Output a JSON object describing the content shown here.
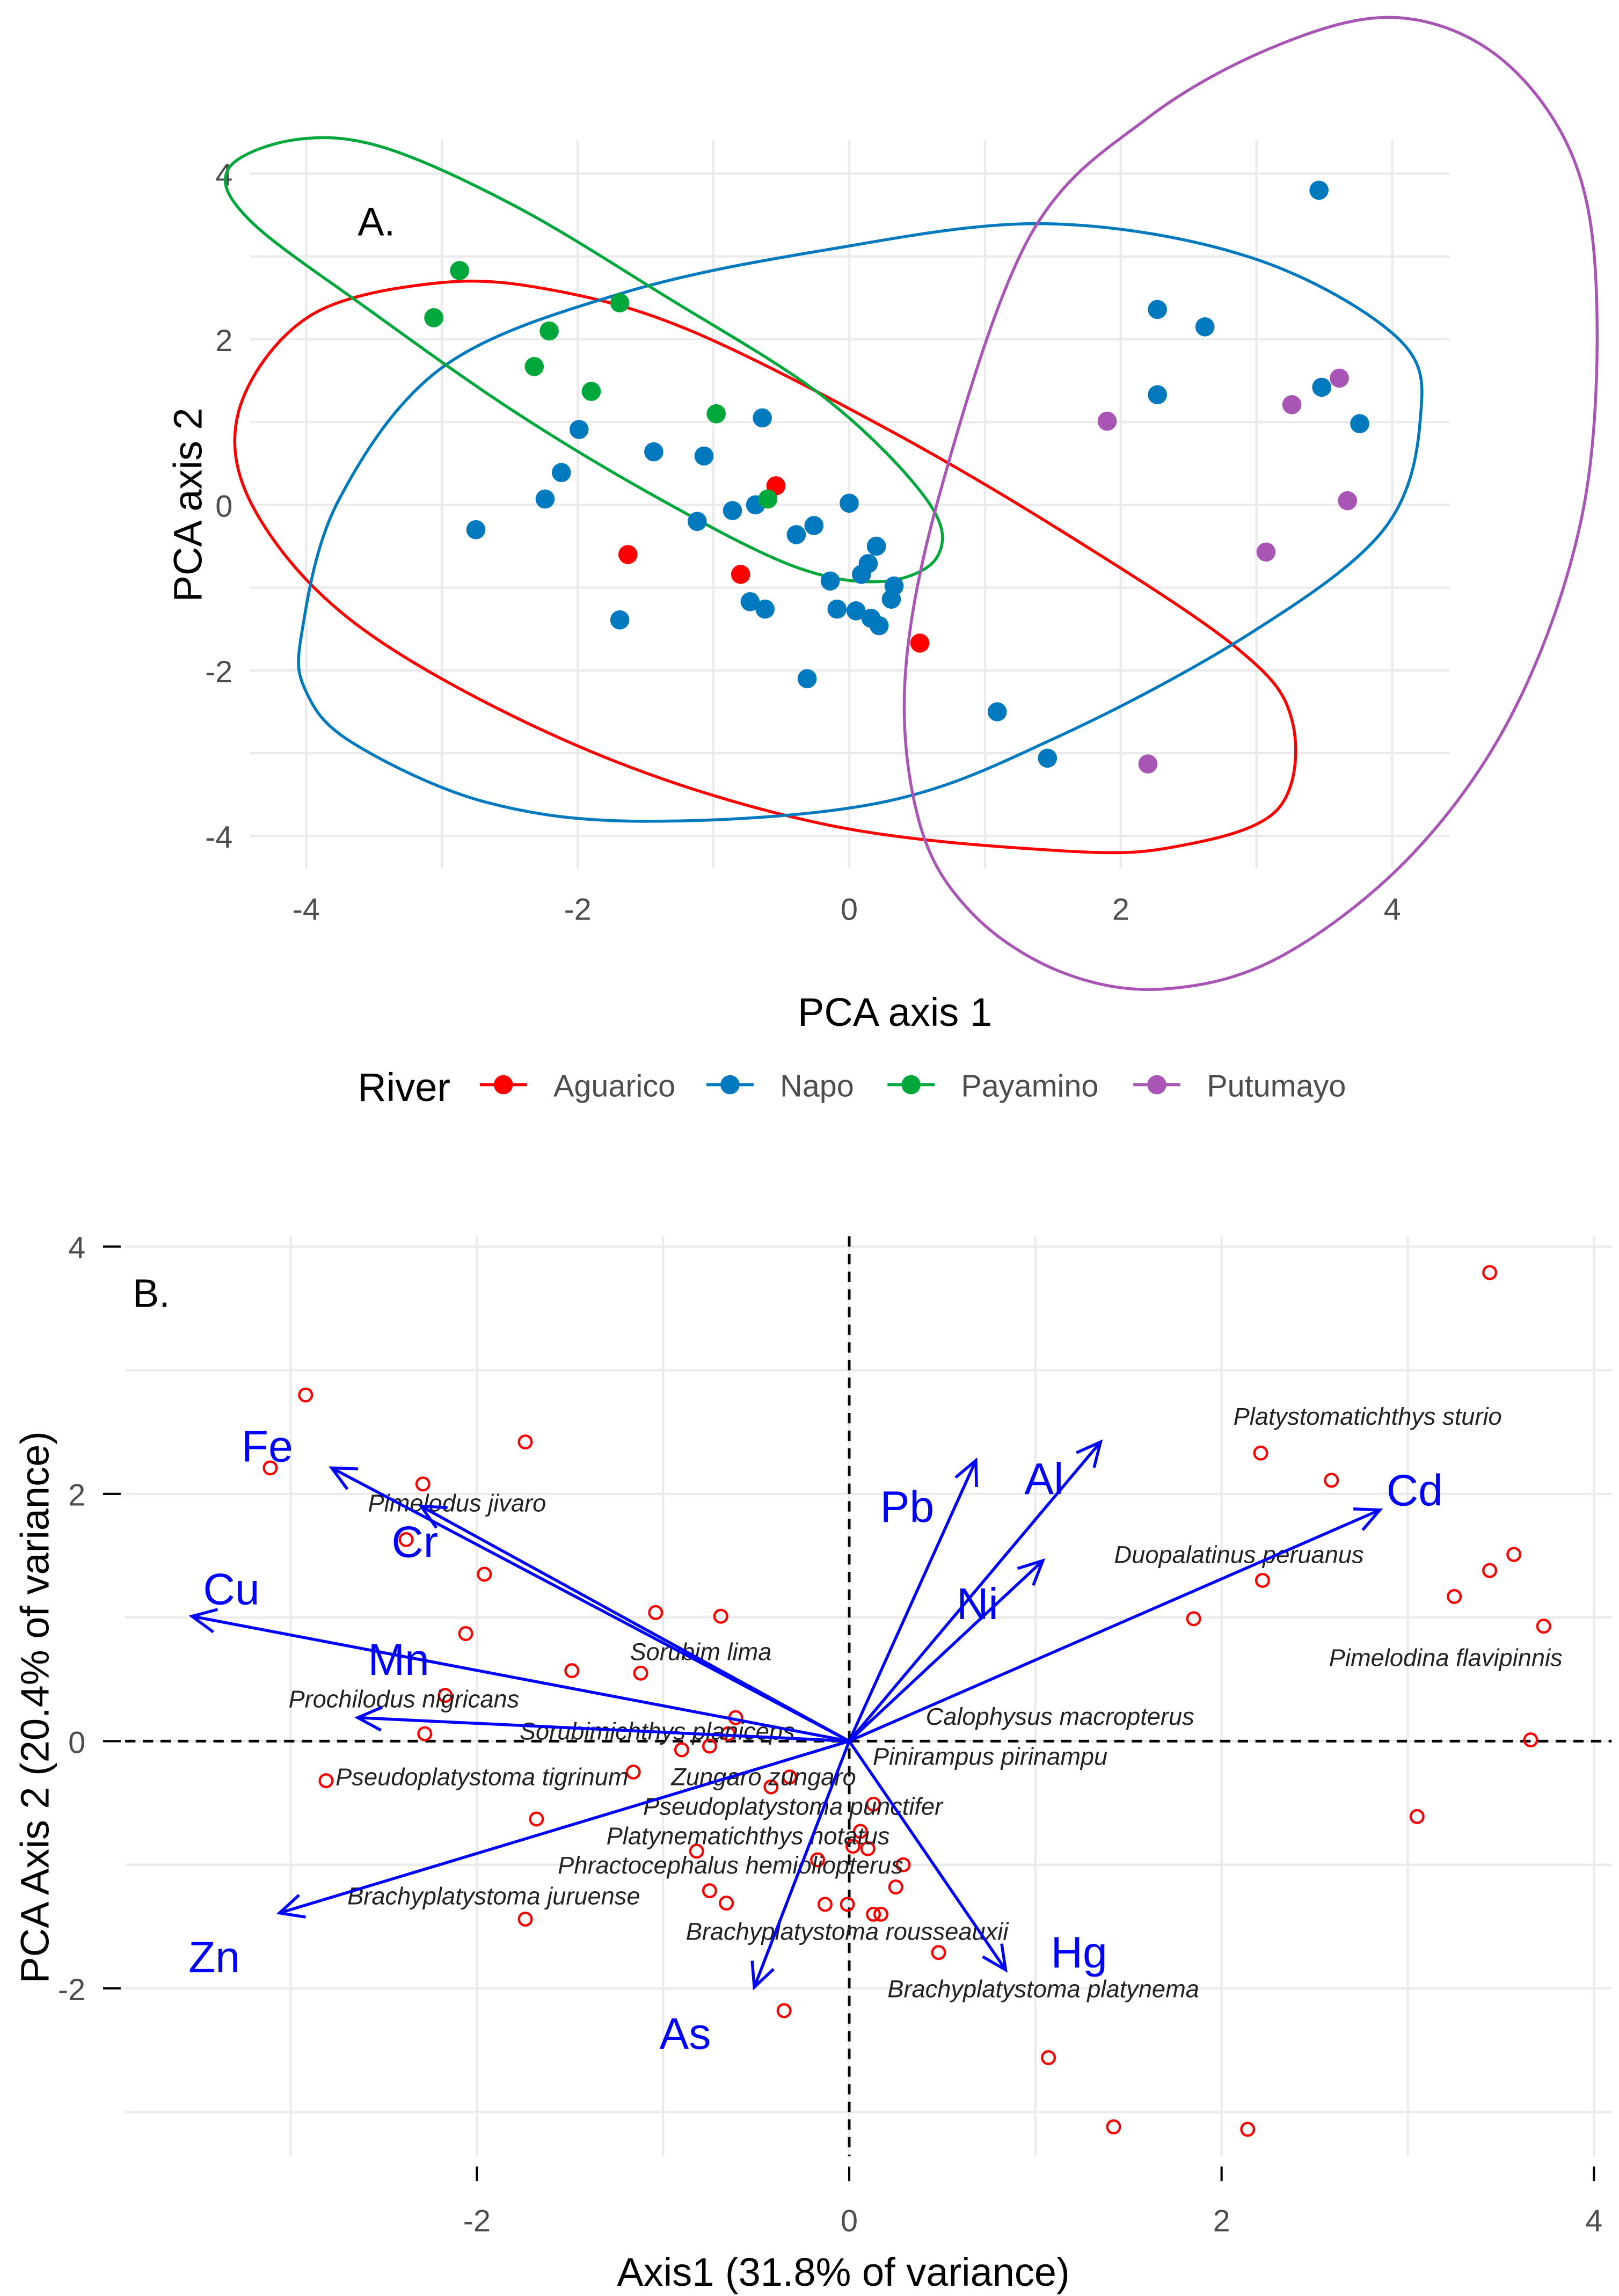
{
  "chart_data": [
    {
      "type": "scatter",
      "panel_label": "A.",
      "xlabel": "PCA  axis 1",
      "ylabel": "PCA axis 2",
      "xlim": [
        -4.4,
        4.5
      ],
      "ylim": [
        -4.3,
        4.4
      ],
      "xticks": [
        -4,
        -2,
        0,
        2,
        4
      ],
      "yticks": [
        -4,
        -2,
        0,
        2,
        4
      ],
      "grid": true,
      "legend": {
        "title": "River",
        "placement": "bottom"
      },
      "series": [
        {
          "name": "Aguarico",
          "color": "#ff0000",
          "points": [
            [
              -0.54,
              0.23
            ],
            [
              -1.63,
              -0.6
            ],
            [
              -0.8,
              -0.84
            ],
            [
              0.52,
              -1.67
            ]
          ]
        },
        {
          "name": "Napo",
          "color": "#0079bf",
          "points": [
            [
              3.46,
              3.8
            ],
            [
              2.27,
              2.36
            ],
            [
              2.62,
              2.15
            ],
            [
              2.27,
              1.33
            ],
            [
              3.48,
              1.42
            ],
            [
              3.76,
              0.98
            ],
            [
              -0.64,
              1.05
            ],
            [
              -1.99,
              0.91
            ],
            [
              -1.44,
              0.64
            ],
            [
              -1.07,
              0.59
            ],
            [
              -2.12,
              0.39
            ],
            [
              -2.75,
              -0.3
            ],
            [
              -2.24,
              0.07
            ],
            [
              -1.12,
              -0.2
            ],
            [
              -0.86,
              -0.07
            ],
            [
              -0.69,
              0
            ],
            [
              -0.26,
              -0.25
            ],
            [
              -0.39,
              -0.36
            ],
            [
              0,
              0.02
            ],
            [
              0.2,
              -0.5
            ],
            [
              0.14,
              -0.71
            ],
            [
              0.09,
              -0.84
            ],
            [
              -0.14,
              -0.92
            ],
            [
              0.33,
              -0.98
            ],
            [
              0.31,
              -1.14
            ],
            [
              -0.73,
              -1.17
            ],
            [
              -0.62,
              -1.26
            ],
            [
              -0.09,
              -1.26
            ],
            [
              0.05,
              -1.28
            ],
            [
              0.16,
              -1.37
            ],
            [
              0.22,
              -1.46
            ],
            [
              -1.69,
              -1.39
            ],
            [
              -0.31,
              -2.1
            ],
            [
              1.09,
              -2.5
            ],
            [
              1.46,
              -3.06
            ]
          ]
        },
        {
          "name": "Payamino",
          "color": "#00a83c",
          "points": [
            [
              -2.87,
              2.83
            ],
            [
              -3.06,
              2.26
            ],
            [
              -2.21,
              2.1
            ],
            [
              -1.69,
              2.44
            ],
            [
              -2.32,
              1.67
            ],
            [
              -1.9,
              1.37
            ],
            [
              -0.98,
              1.1
            ],
            [
              -0.6,
              0.07
            ]
          ]
        },
        {
          "name": "Putumayo",
          "color": "#a855b5",
          "points": [
            [
              3.61,
              1.53
            ],
            [
              3.26,
              1.21
            ],
            [
              1.9,
              1.01
            ],
            [
              3.67,
              0.05
            ],
            [
              3.07,
              -0.57
            ],
            [
              2.2,
              -3.13
            ]
          ]
        }
      ]
    },
    {
      "type": "scatter",
      "subtype": "biplot",
      "panel_label": "B.",
      "xlabel": "Axis1 (31.8% of variance)",
      "ylabel": "PCA Axis 2 (20.4% of variance)",
      "xlim": [
        -3.8,
        4.1
      ],
      "ylim": [
        -3.3,
        4.1
      ],
      "xticks": [
        -2,
        0,
        2,
        4
      ],
      "yticks": [
        -2,
        0,
        2,
        4
      ],
      "grid": true,
      "point_color": "#ff0000",
      "arrow_color": "#0000ff",
      "points": [
        [
          3.44,
          3.79
        ],
        [
          -2.92,
          2.8
        ],
        [
          -1.74,
          2.42
        ],
        [
          -3.11,
          2.21
        ],
        [
          -2.29,
          2.08
        ],
        [
          2.21,
          2.33
        ],
        [
          2.59,
          2.11
        ],
        [
          -2.38,
          1.63
        ],
        [
          3.57,
          1.51
        ],
        [
          3.44,
          1.38
        ],
        [
          2.22,
          1.3
        ],
        [
          3.25,
          1.17
        ],
        [
          -1.96,
          1.35
        ],
        [
          -1.04,
          1.04
        ],
        [
          -0.69,
          1.01
        ],
        [
          1.85,
          0.99
        ],
        [
          3.73,
          0.93
        ],
        [
          -2.06,
          0.87
        ],
        [
          -1.49,
          0.57
        ],
        [
          -1.12,
          0.55
        ],
        [
          -2.17,
          0.37
        ],
        [
          -0.61,
          0.19
        ],
        [
          -0.65,
          0.06
        ],
        [
          -2.28,
          0.06
        ],
        [
          3.66,
          0.01
        ],
        [
          -0.9,
          -0.07
        ],
        [
          -0.75,
          -0.04
        ],
        [
          -2.81,
          -0.32
        ],
        [
          -1.16,
          -0.25
        ],
        [
          -0.42,
          -0.37
        ],
        [
          -0.32,
          -0.29
        ],
        [
          -1.68,
          -0.63
        ],
        [
          0.13,
          -0.51
        ],
        [
          0.06,
          -0.73
        ],
        [
          0.1,
          -0.87
        ],
        [
          -0.82,
          -0.89
        ],
        [
          -0.17,
          -0.96
        ],
        [
          0.29,
          -1.0
        ],
        [
          0.02,
          -0.85
        ],
        [
          0.25,
          -1.18
        ],
        [
          -0.75,
          -1.21
        ],
        [
          -0.66,
          -1.31
        ],
        [
          -0.13,
          -1.32
        ],
        [
          -0.01,
          -1.32
        ],
        [
          0.13,
          -1.4
        ],
        [
          0.17,
          -1.4
        ],
        [
          -1.74,
          -1.44
        ],
        [
          0.48,
          -1.71
        ],
        [
          -0.35,
          -2.18
        ],
        [
          3.05,
          -0.61
        ],
        [
          1.07,
          -2.56
        ],
        [
          1.42,
          -3.12
        ],
        [
          2.14,
          -3.14
        ]
      ],
      "loadings": [
        {
          "name": "Fe",
          "x": -2.78,
          "y": 2.21
        },
        {
          "name": "Cr",
          "x": -2.3,
          "y": 1.9
        },
        {
          "name": "Cu",
          "x": -3.53,
          "y": 1.01
        },
        {
          "name": "Mn",
          "x": -2.64,
          "y": 0.19
        },
        {
          "name": "Zn",
          "x": -3.06,
          "y": -1.39
        },
        {
          "name": "As",
          "x": -0.51,
          "y": -1.99
        },
        {
          "name": "Hg",
          "x": 0.84,
          "y": -1.85
        },
        {
          "name": "Pb",
          "x": 0.68,
          "y": 2.27
        },
        {
          "name": "Al",
          "x": 1.35,
          "y": 2.42
        },
        {
          "name": "Ni",
          "x": 1.04,
          "y": 1.46
        },
        {
          "name": "Cd",
          "x": 2.85,
          "y": 1.87
        }
      ],
      "species_labels": [
        "Platystomatichthys sturio",
        "Pimelodus jivaro",
        "Duopalatinus peruanus",
        "Sorubim lima",
        "Pimelodina flavipinnis",
        "Prochilodus nigricans",
        "Sorubimichthys planiceps",
        "Calophysus macropterus",
        "Pinirampus pirinampu",
        "Zungaro zungaro",
        "Pseudoplatystoma tigrinum",
        "Pseudoplatystoma punctifer",
        "Platynematichthys notatus",
        "Phractocephalus hemioliopterus",
        "Brachyplatystoma juruense",
        "Brachyplatystoma rousseauxii",
        "Brachyplatystoma platynema"
      ]
    }
  ]
}
